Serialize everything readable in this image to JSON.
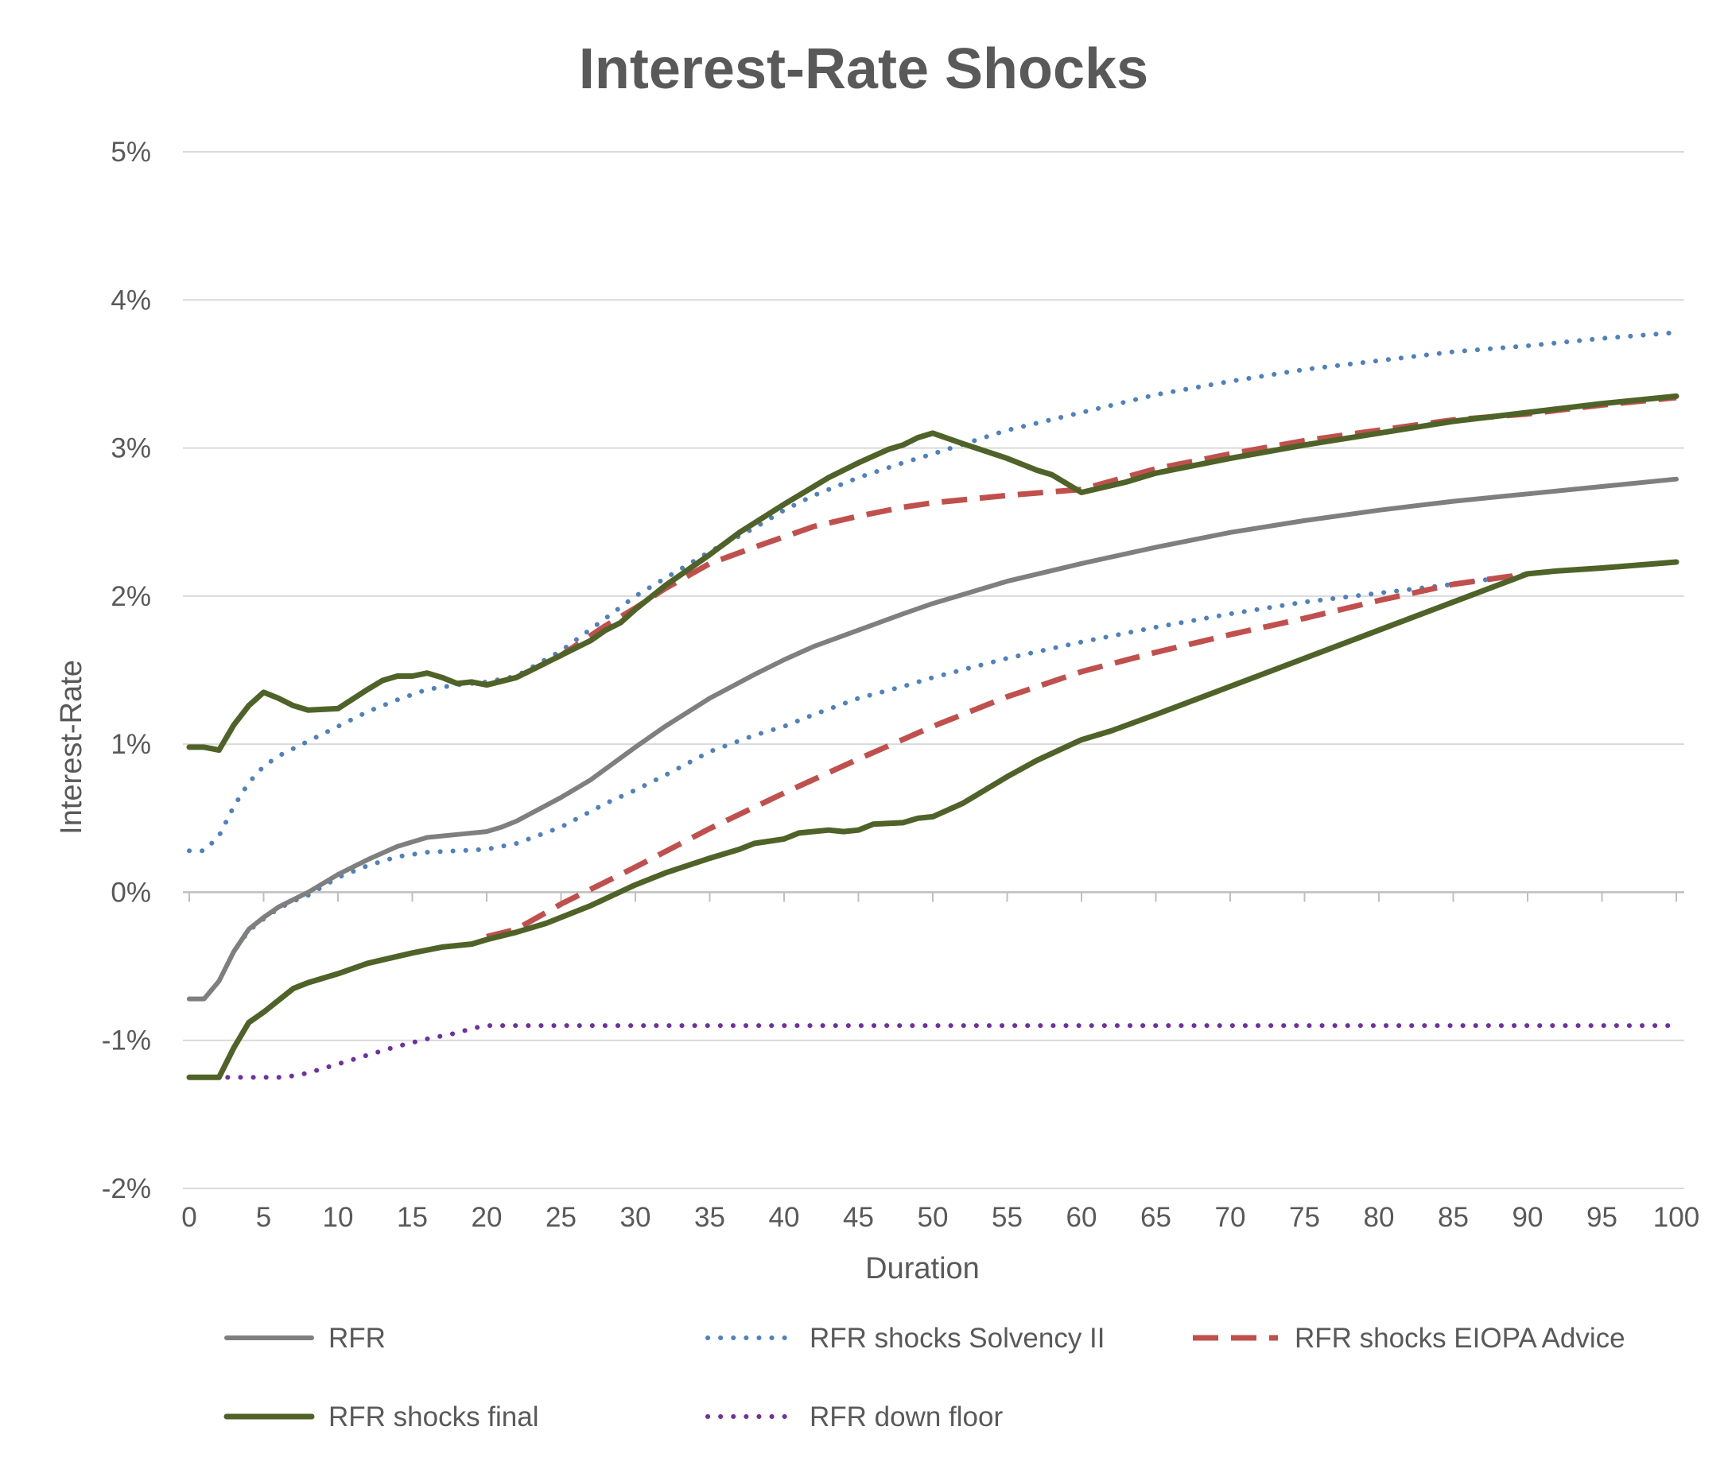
{
  "chart_data": {
    "type": "line",
    "title": "Interest-Rate Shocks",
    "xlabel": "Duration",
    "ylabel": "Interest-Rate",
    "xlim": [
      0,
      100
    ],
    "ylim": [
      -2,
      5
    ],
    "x_ticks": [
      0,
      5,
      10,
      15,
      20,
      25,
      30,
      35,
      40,
      45,
      50,
      55,
      60,
      65,
      70,
      75,
      80,
      85,
      90,
      95,
      100
    ],
    "y_ticks": [
      -2,
      -1,
      0,
      1,
      2,
      3,
      4,
      5
    ],
    "y_tick_labels": [
      "-2%",
      "-1%",
      "0%",
      "1%",
      "2%",
      "3%",
      "4%",
      "5%"
    ],
    "grid": "horizontal",
    "legend_position": "bottom",
    "series": [
      {
        "name": "RFR",
        "color": "#7f7f7f",
        "style": "solid",
        "points": [
          [
            0,
            -0.72
          ],
          [
            1,
            -0.72
          ],
          [
            2,
            -0.6
          ],
          [
            3,
            -0.4
          ],
          [
            4,
            -0.25
          ],
          [
            5,
            -0.17
          ],
          [
            6,
            -0.1
          ],
          [
            7,
            -0.05
          ],
          [
            8,
            0.0
          ],
          [
            9,
            0.06
          ],
          [
            10,
            0.12
          ],
          [
            12,
            0.22
          ],
          [
            14,
            0.31
          ],
          [
            16,
            0.37
          ],
          [
            18,
            0.39
          ],
          [
            20,
            0.41
          ],
          [
            21,
            0.44
          ],
          [
            22,
            0.48
          ],
          [
            25,
            0.64
          ],
          [
            27,
            0.76
          ],
          [
            30,
            0.98
          ],
          [
            32,
            1.12
          ],
          [
            35,
            1.31
          ],
          [
            38,
            1.47
          ],
          [
            40,
            1.57
          ],
          [
            42,
            1.66
          ],
          [
            45,
            1.77
          ],
          [
            48,
            1.88
          ],
          [
            50,
            1.95
          ],
          [
            55,
            2.1
          ],
          [
            60,
            2.22
          ],
          [
            65,
            2.33
          ],
          [
            70,
            2.43
          ],
          [
            75,
            2.51
          ],
          [
            80,
            2.58
          ],
          [
            85,
            2.64
          ],
          [
            90,
            2.69
          ],
          [
            95,
            2.74
          ],
          [
            100,
            2.79
          ]
        ]
      },
      {
        "name": "RFR shocks Solvency II",
        "color": "#4f81bd",
        "style": "dotted",
        "points": [
          [
            0,
            0.28
          ],
          [
            1,
            0.28
          ],
          [
            2,
            0.38
          ],
          [
            3,
            0.58
          ],
          [
            4,
            0.74
          ],
          [
            5,
            0.85
          ],
          [
            6,
            0.92
          ],
          [
            7,
            0.97
          ],
          [
            8,
            1.02
          ],
          [
            10,
            1.12
          ],
          [
            12,
            1.22
          ],
          [
            14,
            1.3
          ],
          [
            16,
            1.37
          ],
          [
            18,
            1.4
          ],
          [
            20,
            1.42
          ],
          [
            22,
            1.46
          ],
          [
            25,
            1.63
          ],
          [
            28,
            1.85
          ],
          [
            30,
            2.0
          ],
          [
            32,
            2.12
          ],
          [
            35,
            2.3
          ],
          [
            38,
            2.46
          ],
          [
            40,
            2.58
          ],
          [
            42,
            2.68
          ],
          [
            45,
            2.8
          ],
          [
            48,
            2.9
          ],
          [
            50,
            2.96
          ],
          [
            55,
            3.12
          ],
          [
            60,
            3.24
          ],
          [
            65,
            3.36
          ],
          [
            70,
            3.45
          ],
          [
            75,
            3.53
          ],
          [
            80,
            3.59
          ],
          [
            85,
            3.65
          ],
          [
            90,
            3.69
          ],
          [
            95,
            3.74
          ],
          [
            100,
            3.78
          ]
        ]
      },
      {
        "name": "RFR shocks EIOPA Advice",
        "color": "#c0504d",
        "style": "dashed",
        "points": [
          [
            20,
            1.4
          ],
          [
            22,
            1.45
          ],
          [
            25,
            1.6
          ],
          [
            28,
            1.8
          ],
          [
            30,
            1.92
          ],
          [
            32,
            2.05
          ],
          [
            35,
            2.22
          ],
          [
            38,
            2.33
          ],
          [
            40,
            2.4
          ],
          [
            42,
            2.47
          ],
          [
            45,
            2.54
          ],
          [
            48,
            2.6
          ],
          [
            50,
            2.63
          ],
          [
            55,
            2.68
          ],
          [
            60,
            2.72
          ],
          [
            65,
            2.86
          ],
          [
            70,
            2.96
          ],
          [
            75,
            3.05
          ],
          [
            80,
            3.12
          ],
          [
            85,
            3.19
          ],
          [
            90,
            3.23
          ],
          [
            95,
            3.29
          ],
          [
            100,
            3.34
          ]
        ]
      },
      {
        "name": "RFR shocks final",
        "color": "#4f6228",
        "style": "solid",
        "points": [
          [
            0,
            0.98
          ],
          [
            1,
            0.98
          ],
          [
            2,
            0.96
          ],
          [
            3,
            1.13
          ],
          [
            4,
            1.26
          ],
          [
            5,
            1.35
          ],
          [
            6,
            1.31
          ],
          [
            7,
            1.26
          ],
          [
            8,
            1.23
          ],
          [
            10,
            1.24
          ],
          [
            12,
            1.37
          ],
          [
            13,
            1.43
          ],
          [
            14,
            1.46
          ],
          [
            15,
            1.46
          ],
          [
            16,
            1.48
          ],
          [
            17,
            1.45
          ],
          [
            18,
            1.41
          ],
          [
            19,
            1.42
          ],
          [
            20,
            1.4
          ],
          [
            22,
            1.45
          ],
          [
            25,
            1.6
          ],
          [
            27,
            1.7
          ],
          [
            28,
            1.77
          ],
          [
            29,
            1.82
          ],
          [
            30,
            1.91
          ],
          [
            32,
            2.07
          ],
          [
            35,
            2.28
          ],
          [
            37,
            2.43
          ],
          [
            40,
            2.62
          ],
          [
            42,
            2.74
          ],
          [
            43,
            2.8
          ],
          [
            45,
            2.9
          ],
          [
            47,
            2.99
          ],
          [
            48,
            3.02
          ],
          [
            49,
            3.07
          ],
          [
            50,
            3.1
          ],
          [
            52,
            3.03
          ],
          [
            55,
            2.93
          ],
          [
            57,
            2.85
          ],
          [
            58,
            2.82
          ],
          [
            60,
            2.7
          ],
          [
            63,
            2.77
          ],
          [
            65,
            2.83
          ],
          [
            70,
            2.93
          ],
          [
            75,
            3.02
          ],
          [
            80,
            3.1
          ],
          [
            85,
            3.18
          ],
          [
            90,
            3.24
          ],
          [
            95,
            3.3
          ],
          [
            100,
            3.35
          ]
        ]
      },
      {
        "name": "RFR down floor",
        "color": "#7030a0",
        "style": "dotted",
        "points": [
          [
            0,
            -1.25
          ],
          [
            1,
            -1.25
          ],
          [
            2,
            -1.25
          ],
          [
            3,
            -1.25
          ],
          [
            4,
            -1.25
          ],
          [
            5,
            -1.25
          ],
          [
            6,
            -1.25
          ],
          [
            7,
            -1.24
          ],
          [
            8,
            -1.22
          ],
          [
            10,
            -1.16
          ],
          [
            12,
            -1.1
          ],
          [
            14,
            -1.04
          ],
          [
            16,
            -0.99
          ],
          [
            18,
            -0.95
          ],
          [
            19,
            -0.92
          ],
          [
            20,
            -0.9
          ],
          [
            25,
            -0.9
          ],
          [
            30,
            -0.9
          ],
          [
            40,
            -0.9
          ],
          [
            50,
            -0.9
          ],
          [
            60,
            -0.9
          ],
          [
            70,
            -0.9
          ],
          [
            80,
            -0.9
          ],
          [
            90,
            -0.9
          ],
          [
            100,
            -0.9
          ]
        ]
      },
      {
        "name": "RFR shocks Solvency II",
        "legend": false,
        "color": "#4f81bd",
        "style": "dotted",
        "points": [
          [
            0,
            -0.72
          ],
          [
            1,
            -0.72
          ],
          [
            2,
            -0.6
          ],
          [
            3,
            -0.4
          ],
          [
            4,
            -0.26
          ],
          [
            5,
            -0.18
          ],
          [
            6,
            -0.11
          ],
          [
            7,
            -0.06
          ],
          [
            8,
            -0.02
          ],
          [
            10,
            0.1
          ],
          [
            12,
            0.18
          ],
          [
            14,
            0.24
          ],
          [
            16,
            0.27
          ],
          [
            18,
            0.28
          ],
          [
            20,
            0.29
          ],
          [
            22,
            0.33
          ],
          [
            25,
            0.44
          ],
          [
            28,
            0.6
          ],
          [
            30,
            0.69
          ],
          [
            32,
            0.79
          ],
          [
            35,
            0.95
          ],
          [
            38,
            1.06
          ],
          [
            40,
            1.12
          ],
          [
            42,
            1.2
          ],
          [
            45,
            1.31
          ],
          [
            48,
            1.39
          ],
          [
            50,
            1.45
          ],
          [
            55,
            1.58
          ],
          [
            60,
            1.69
          ],
          [
            65,
            1.79
          ],
          [
            70,
            1.88
          ],
          [
            75,
            1.96
          ],
          [
            80,
            2.02
          ],
          [
            85,
            2.08
          ],
          [
            90,
            2.15
          ]
        ]
      },
      {
        "name": "RFR shocks EIOPA Advice",
        "legend": false,
        "color": "#c0504d",
        "style": "dashed",
        "points": [
          [
            20,
            -0.3
          ],
          [
            22,
            -0.25
          ],
          [
            25,
            -0.08
          ],
          [
            28,
            0.07
          ],
          [
            30,
            0.17
          ],
          [
            35,
            0.43
          ],
          [
            40,
            0.67
          ],
          [
            45,
            0.9
          ],
          [
            50,
            1.12
          ],
          [
            55,
            1.32
          ],
          [
            60,
            1.49
          ],
          [
            65,
            1.62
          ],
          [
            70,
            1.74
          ],
          [
            75,
            1.85
          ],
          [
            80,
            1.97
          ],
          [
            85,
            2.08
          ],
          [
            90,
            2.15
          ]
        ]
      },
      {
        "name": "RFR shocks final",
        "legend": false,
        "color": "#4f6228",
        "style": "solid",
        "points": [
          [
            0,
            -1.25
          ],
          [
            1,
            -1.25
          ],
          [
            2,
            -1.25
          ],
          [
            3,
            -1.05
          ],
          [
            4,
            -0.88
          ],
          [
            5,
            -0.81
          ],
          [
            6,
            -0.73
          ],
          [
            7,
            -0.65
          ],
          [
            8,
            -0.61
          ],
          [
            10,
            -0.55
          ],
          [
            12,
            -0.48
          ],
          [
            15,
            -0.41
          ],
          [
            17,
            -0.37
          ],
          [
            19,
            -0.35
          ],
          [
            20,
            -0.32
          ],
          [
            22,
            -0.27
          ],
          [
            24,
            -0.21
          ],
          [
            26,
            -0.13
          ],
          [
            27,
            -0.09
          ],
          [
            30,
            0.05
          ],
          [
            32,
            0.13
          ],
          [
            35,
            0.23
          ],
          [
            37,
            0.29
          ],
          [
            38,
            0.33
          ],
          [
            40,
            0.36
          ],
          [
            41,
            0.4
          ],
          [
            43,
            0.42
          ],
          [
            44,
            0.41
          ],
          [
            45,
            0.42
          ],
          [
            46,
            0.46
          ],
          [
            48,
            0.47
          ],
          [
            49,
            0.5
          ],
          [
            50,
            0.51
          ],
          [
            52,
            0.6
          ],
          [
            55,
            0.78
          ],
          [
            57,
            0.89
          ],
          [
            60,
            1.03
          ],
          [
            62,
            1.09
          ],
          [
            65,
            1.2
          ],
          [
            70,
            1.39
          ],
          [
            75,
            1.58
          ],
          [
            80,
            1.77
          ],
          [
            85,
            1.96
          ],
          [
            90,
            2.15
          ],
          [
            92,
            2.17
          ],
          [
            95,
            2.19
          ],
          [
            100,
            2.23
          ]
        ]
      }
    ]
  }
}
